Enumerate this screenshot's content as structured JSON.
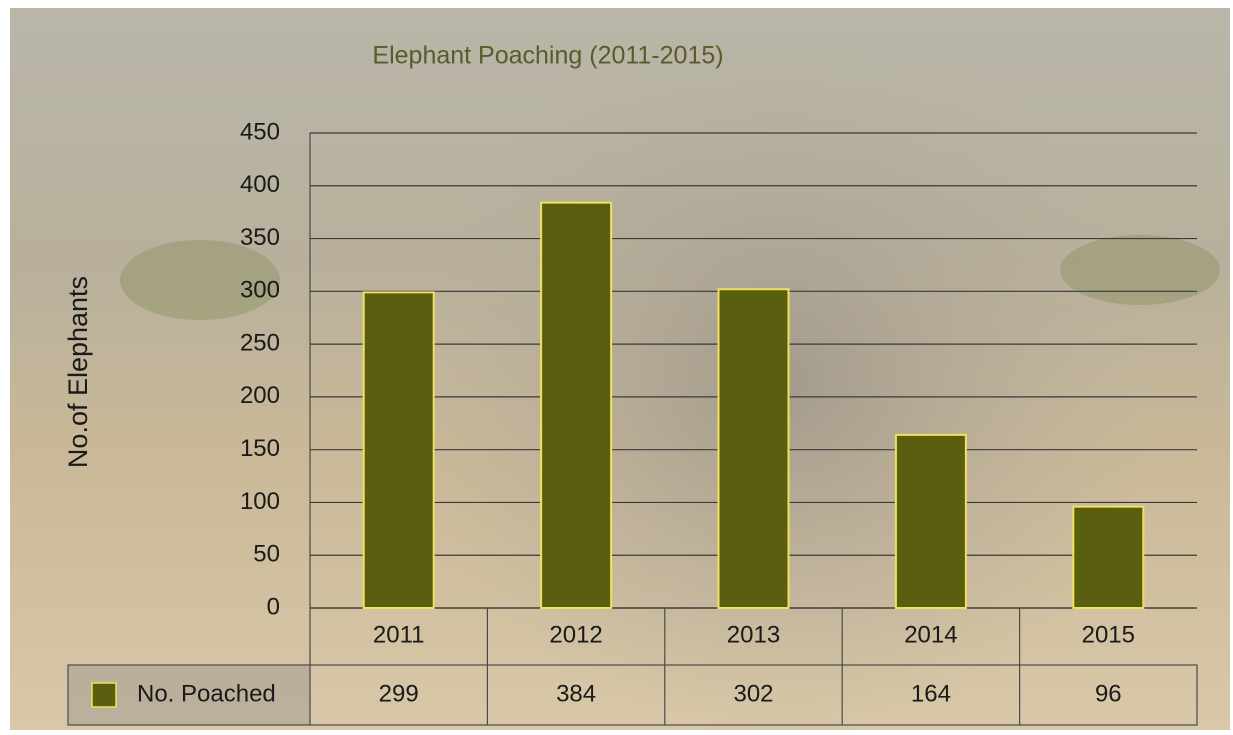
{
  "chart_data": {
    "type": "bar",
    "title": "Elephant Poaching (2011-2015)",
    "y_label": "No.of Elephants",
    "categories": [
      "2011",
      "2012",
      "2013",
      "2014",
      "2015"
    ],
    "series": [
      {
        "name": "No. Poached",
        "color": "#5a5f10",
        "values": [
          299,
          384,
          302,
          164,
          96
        ]
      }
    ],
    "ylim": [
      0,
      450
    ],
    "yticks": [
      0,
      50,
      100,
      150,
      200,
      250,
      300,
      350,
      400,
      450
    ],
    "grid": true
  }
}
